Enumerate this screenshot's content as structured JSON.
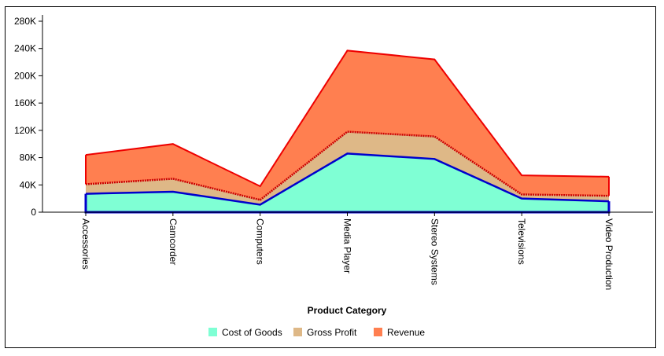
{
  "chart_data": {
    "type": "area",
    "stacked": true,
    "xlabel": "Product Category",
    "ylabel": "",
    "ylim": [
      0,
      280000
    ],
    "yticks": [
      0,
      40000,
      80000,
      120000,
      160000,
      200000,
      240000,
      280000
    ],
    "ytick_labels": [
      "0",
      "40K",
      "80K",
      "120K",
      "160K",
      "200K",
      "240K",
      "280K"
    ],
    "categories": [
      "Accessories",
      "Camcorder",
      "Computers",
      "Media Player",
      "Stereo Systems",
      "Televisions",
      "Video Production"
    ],
    "series": [
      {
        "name": "Cost of Goods",
        "values": [
          27000,
          30000,
          11000,
          86000,
          78000,
          20000,
          16000
        ],
        "color": "#7fffd4",
        "line_color": "#0000cc"
      },
      {
        "name": "Gross Profit",
        "values": [
          14000,
          19000,
          7000,
          32000,
          33000,
          6000,
          8000
        ],
        "color": "#deb887",
        "line_color": "#cc0000"
      },
      {
        "name": "Revenue",
        "values": [
          43000,
          51000,
          20000,
          119000,
          113000,
          28000,
          28000
        ],
        "color": "#ff7f50",
        "line_color": "#ee0000"
      }
    ],
    "legend_position": "bottom",
    "grid": false
  }
}
